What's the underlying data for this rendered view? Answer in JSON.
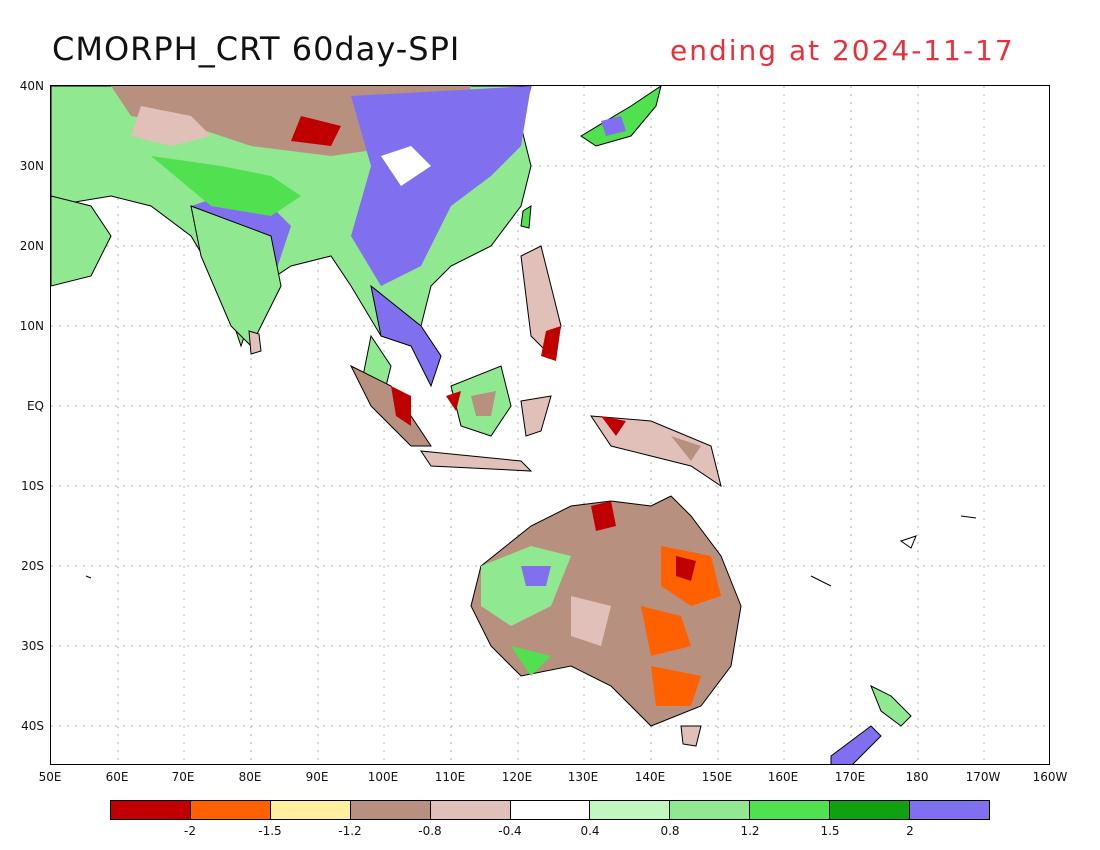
{
  "title": {
    "left": "CMORPH_CRT 60day-SPI",
    "right": "ending at 2024-11-17",
    "right_color": "#e8303a"
  },
  "map": {
    "lat_labels": [
      "40N",
      "30N",
      "20N",
      "10N",
      "EQ",
      "10S",
      "20S",
      "30S",
      "40S"
    ],
    "lon_labels": [
      "50E",
      "60E",
      "70E",
      "80E",
      "90E",
      "100E",
      "110E",
      "120E",
      "130E",
      "140E",
      "150E",
      "160E",
      "170E",
      "180",
      "170W",
      "160W"
    ]
  },
  "legend": {
    "colors": [
      "#c00000",
      "#ff6000",
      "#fff0a0",
      "#b89080",
      "#e0c0b8",
      "#ffffff",
      "#c0f8c0",
      "#90e890",
      "#50e050",
      "#10a010",
      "#8070f0"
    ],
    "labels": [
      "-2",
      "-1.5",
      "-1.2",
      "-0.8",
      "-0.4",
      "0.4",
      "0.8",
      "1.2",
      "1.5",
      "2"
    ]
  }
}
